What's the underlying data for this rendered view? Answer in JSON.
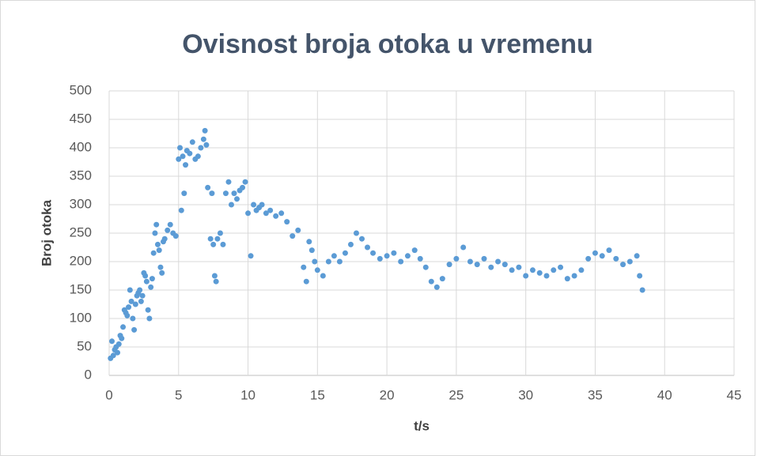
{
  "chart_data": {
    "type": "scatter",
    "title": "Ovisnost broja otoka u vremenu",
    "xlabel": "t/s",
    "ylabel": "Broj otoka",
    "color": "#5b9bd5",
    "grid": true,
    "xlim": [
      0,
      45
    ],
    "xticks": [
      0,
      5,
      10,
      15,
      20,
      25,
      30,
      35,
      40,
      45
    ],
    "ylim": [
      0,
      500
    ],
    "yticks": [
      0,
      50,
      100,
      150,
      200,
      250,
      300,
      350,
      400,
      450,
      500
    ],
    "x": [
      0.1,
      0.2,
      0.3,
      0.4,
      0.5,
      0.6,
      0.7,
      0.8,
      0.9,
      1.0,
      1.1,
      1.2,
      1.3,
      1.4,
      1.5,
      1.6,
      1.7,
      1.8,
      1.9,
      2.0,
      2.1,
      2.2,
      2.3,
      2.4,
      2.5,
      2.6,
      2.7,
      2.8,
      2.9,
      3.0,
      3.1,
      3.2,
      3.3,
      3.4,
      3.5,
      3.6,
      3.7,
      3.8,
      3.9,
      4.0,
      4.2,
      4.4,
      4.6,
      4.8,
      5.0,
      5.1,
      5.2,
      5.3,
      5.4,
      5.5,
      5.6,
      5.8,
      6.0,
      6.2,
      6.4,
      6.6,
      6.8,
      6.9,
      7.0,
      7.1,
      7.3,
      7.4,
      7.5,
      7.6,
      7.7,
      7.8,
      8.0,
      8.2,
      8.4,
      8.6,
      8.8,
      9.0,
      9.2,
      9.4,
      9.6,
      9.8,
      10.0,
      10.2,
      10.4,
      10.6,
      10.8,
      11.0,
      11.3,
      11.6,
      12.0,
      12.4,
      12.8,
      13.2,
      13.6,
      14.0,
      14.2,
      14.4,
      14.6,
      14.8,
      15.0,
      15.4,
      15.8,
      16.2,
      16.6,
      17.0,
      17.4,
      17.8,
      18.2,
      18.6,
      19.0,
      19.5,
      20.0,
      20.5,
      21.0,
      21.5,
      22.0,
      22.4,
      22.8,
      23.2,
      23.6,
      24.0,
      24.5,
      25.0,
      25.5,
      26.0,
      26.5,
      27.0,
      27.5,
      28.0,
      28.5,
      29.0,
      29.5,
      30.0,
      30.5,
      31.0,
      31.5,
      32.0,
      32.5,
      33.0,
      33.5,
      34.0,
      34.5,
      35.0,
      35.5,
      36.0,
      36.5,
      37.0,
      37.5,
      38.0,
      38.2,
      38.4
    ],
    "values": [
      30,
      60,
      35,
      45,
      50,
      40,
      55,
      70,
      65,
      85,
      115,
      110,
      105,
      120,
      150,
      130,
      100,
      80,
      125,
      140,
      145,
      150,
      130,
      140,
      180,
      175,
      165,
      115,
      100,
      155,
      170,
      215,
      250,
      265,
      230,
      220,
      190,
      180,
      235,
      240,
      255,
      265,
      250,
      245,
      380,
      400,
      290,
      385,
      320,
      370,
      395,
      390,
      410,
      380,
      385,
      400,
      415,
      430,
      405,
      330,
      240,
      320,
      230,
      175,
      165,
      240,
      250,
      230,
      320,
      340,
      300,
      320,
      310,
      325,
      330,
      340,
      285,
      210,
      300,
      290,
      295,
      300,
      285,
      290,
      280,
      285,
      270,
      245,
      255,
      190,
      165,
      235,
      220,
      200,
      185,
      175,
      200,
      210,
      200,
      215,
      230,
      250,
      240,
      225,
      215,
      205,
      210,
      215,
      200,
      210,
      220,
      205,
      190,
      165,
      155,
      170,
      195,
      205,
      225,
      200,
      195,
      205,
      190,
      200,
      195,
      185,
      190,
      175,
      185,
      180,
      175,
      185,
      190,
      170,
      175,
      185,
      205,
      215,
      210,
      220,
      205,
      195,
      200,
      210,
      175,
      150
    ]
  }
}
